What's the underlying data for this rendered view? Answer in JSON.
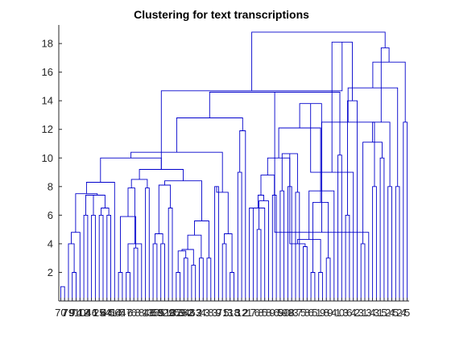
{
  "chart_data": {
    "type": "dendrogram",
    "title": "Clustering for text transcriptions",
    "xlabel": "",
    "ylabel": "",
    "ylim": [
      0,
      19.3
    ],
    "yticks": [
      2,
      4,
      6,
      8,
      10,
      12,
      14,
      16,
      18
    ],
    "grid": false,
    "colors": {
      "link": "#0000cc",
      "axis": "#262626",
      "title": "#000000"
    },
    "leaf_labels": [
      "70",
      "7",
      "79",
      "9",
      "74",
      "10",
      "12",
      "4",
      "46",
      "1",
      "25",
      "6",
      "44",
      "41",
      "56",
      "4",
      "5",
      "47",
      "6",
      "6",
      "8",
      "8",
      "1",
      "48",
      "35",
      "68",
      "9",
      "51",
      "29",
      "8",
      "32",
      "59",
      "64",
      "62",
      "3",
      "63",
      "2",
      "4",
      "3",
      "8",
      "3",
      "9",
      "71",
      "5",
      "3",
      "18",
      "3",
      "12",
      "2",
      "1",
      "7",
      "6",
      "8",
      "5",
      "8",
      "9",
      "6",
      "5",
      "90",
      "99",
      "8",
      "3",
      "7",
      "5",
      "8",
      "6",
      "5",
      "1",
      "9",
      "8",
      "9",
      "4",
      "1",
      "0",
      "3",
      "6",
      "4",
      "2",
      "3",
      "1",
      "3",
      "4",
      "3",
      "1",
      "5",
      "2",
      "4",
      "5",
      "2",
      "4",
      "5"
    ],
    "merges": [
      {
        "left": 1,
        "right": 2,
        "height": 1.0
      },
      {
        "left": 4,
        "right": 5,
        "height": 2.0
      },
      {
        "left": -2,
        "right": 3,
        "height": 4.0
      },
      {
        "left": 7,
        "right": 8,
        "height": 6.0
      },
      {
        "left": 9,
        "right": 10,
        "height": 6.0
      },
      {
        "left": 11,
        "right": 12,
        "height": 6.0
      },
      {
        "left": 13,
        "right": 14,
        "height": 6.0
      },
      {
        "left": -3,
        "right": 6,
        "height": 4.8
      },
      {
        "left": -4,
        "right": -5,
        "height": 7.4
      },
      {
        "left": -6,
        "right": -7,
        "height": 6.5
      },
      {
        "left": -9,
        "right": -10,
        "height": 7.4
      },
      {
        "left": -8,
        "right": -11,
        "height": 7.5
      },
      {
        "left": -12,
        "right": 15,
        "height": 8.3
      },
      {
        "left": 16,
        "right": 17,
        "height": 2.0
      },
      {
        "left": 18,
        "right": 19,
        "height": 2.0
      },
      {
        "left": 20,
        "right": 21,
        "height": 3.7
      },
      {
        "left": -15,
        "right": 22,
        "height": 4.0
      },
      {
        "left": -14,
        "right": -16,
        "height": 5.9
      },
      {
        "left": -17,
        "right": -18,
        "height": 7.9
      },
      {
        "left": 23,
        "right": 24,
        "height": 7.9
      },
      {
        "left": -19,
        "right": -20,
        "height": 8.5
      },
      {
        "left": 25,
        "right": 26,
        "height": 4.0
      },
      {
        "left": 27,
        "right": 28,
        "height": 4.0
      },
      {
        "left": -22,
        "right": -23,
        "height": 4.7
      },
      {
        "left": 29,
        "right": 30,
        "height": 6.5
      },
      {
        "left": -24,
        "right": -25,
        "height": 8.1
      },
      {
        "left": 31,
        "right": 32,
        "height": 2.0
      },
      {
        "left": 33,
        "right": 34,
        "height": 3.0
      },
      {
        "left": -27,
        "right": -28,
        "height": 3.5
      },
      {
        "left": 35,
        "right": 36,
        "height": 2.5
      },
      {
        "left": -29,
        "right": -30,
        "height": 3.6
      },
      {
        "left": 37,
        "right": 38,
        "height": 3.0
      },
      {
        "left": -31,
        "right": -32,
        "height": 4.6
      },
      {
        "left": 39,
        "right": 40,
        "height": 3.0
      },
      {
        "left": -33,
        "right": -34,
        "height": 5.6
      },
      {
        "left": -26,
        "right": -35,
        "height": 8.4
      },
      {
        "left": -21,
        "right": -36,
        "height": 9.2
      },
      {
        "left": -13,
        "right": -37,
        "height": 10.0
      },
      {
        "left": 41,
        "right": 42,
        "height": 8.0
      },
      {
        "left": 43,
        "right": 44,
        "height": 4.0
      },
      {
        "left": 45,
        "right": 46,
        "height": 2.0
      },
      {
        "left": -40,
        "right": -41,
        "height": 4.7
      },
      {
        "left": -39,
        "right": -42,
        "height": 7.6
      },
      {
        "left": -38,
        "right": -43,
        "height": 10.4
      },
      {
        "left": 47,
        "right": 48,
        "height": 9.0
      },
      {
        "left": 49,
        "right": -45,
        "height": 11.9
      },
      {
        "left": -44,
        "right": -46,
        "height": 12.8
      },
      {
        "left": 50,
        "right": 51,
        "height": 6.5
      },
      {
        "left": 52,
        "right": 53,
        "height": 5.0
      },
      {
        "left": -48,
        "right": 54,
        "height": 6.5
      },
      {
        "left": -49,
        "right": 55,
        "height": 7.0
      },
      {
        "left": 56,
        "right": 57,
        "height": 7.4
      },
      {
        "left": -50,
        "right": -51,
        "height": 7.4
      },
      {
        "left": 58,
        "right": 59,
        "height": 7.7
      },
      {
        "left": -52,
        "right": -53,
        "height": 8.8
      },
      {
        "left": 60,
        "right": 61,
        "height": 8.0
      },
      {
        "left": 62,
        "right": 63,
        "height": 7.6
      },
      {
        "left": -55,
        "right": -56,
        "height": 10.0
      },
      {
        "left": -54,
        "right": -57,
        "height": 10.3
      },
      {
        "left": 64,
        "right": 65,
        "height": 3.8
      },
      {
        "left": 66,
        "right": 67,
        "height": 2.0
      },
      {
        "left": -59,
        "right": -60,
        "height": 4.0
      },
      {
        "left": 68,
        "right": 69,
        "height": 2.0
      },
      {
        "left": 70,
        "right": 71,
        "height": 3.0
      },
      {
        "left": -62,
        "right": -63,
        "height": 4.3
      },
      {
        "left": -61,
        "right": -64,
        "height": 6.9
      },
      {
        "left": 72,
        "right": -65,
        "height": 7.7
      },
      {
        "left": -58,
        "right": -66,
        "height": 12.1
      },
      {
        "left": 73,
        "right": 74,
        "height": 10.2
      },
      {
        "left": -67,
        "right": -68,
        "height": 13.8
      },
      {
        "left": 75,
        "right": 76,
        "height": 6.0
      },
      {
        "left": -70,
        "right": 77,
        "height": 9.0
      },
      {
        "left": 78,
        "right": -71,
        "height": 14.0
      },
      {
        "left": -47,
        "right": -69,
        "height": 14.6
      },
      {
        "left": 79,
        "right": 80,
        "height": 4.0
      },
      {
        "left": -74,
        "right": 81,
        "height": 4.8
      },
      {
        "left": 82,
        "right": 83,
        "height": 8.0
      },
      {
        "left": 84,
        "right": 85,
        "height": 10.0
      },
      {
        "left": -76,
        "right": -77,
        "height": 12.5
      },
      {
        "left": -75,
        "right": -78,
        "height": 11.1
      },
      {
        "left": 86,
        "right": 87,
        "height": 8.0
      },
      {
        "left": 88,
        "right": 89,
        "height": 8.0
      },
      {
        "left": -80,
        "right": -81,
        "height": 12.5
      },
      {
        "left": -79,
        "right": -82,
        "height": 14.9
      },
      {
        "left": 90,
        "right": 91,
        "height": 12.5
      },
      {
        "left": -84,
        "right": -85,
        "height": 16.7
      },
      {
        "left": -83,
        "right": -86,
        "height": 17.7
      },
      {
        "left": -72,
        "right": -73,
        "height": 18.1
      },
      {
        "left": -37,
        "right": -88,
        "height": 14.7
      },
      {
        "left": -89,
        "right": -87,
        "height": 18.8
      }
    ]
  }
}
